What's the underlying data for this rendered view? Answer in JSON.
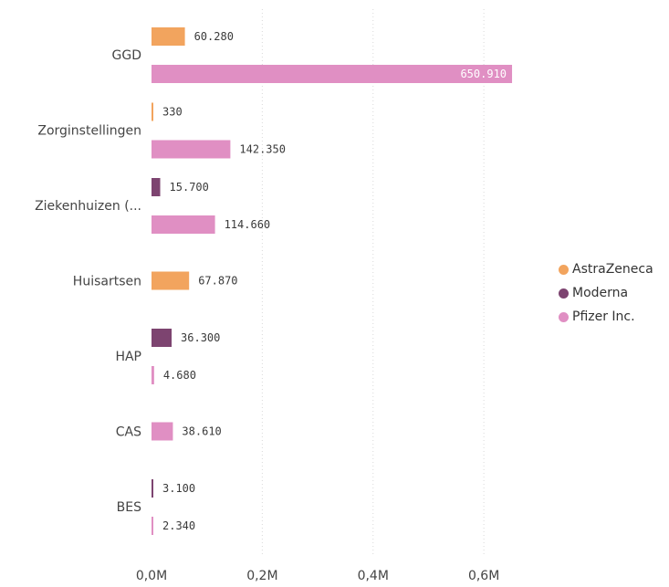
{
  "chart_data": {
    "type": "bar",
    "orientation": "horizontal",
    "categories": [
      "GGD",
      "Zorginstellingen",
      "Ziekenhuizen (...",
      "Huisartsen",
      "HAP",
      "CAS",
      "BES"
    ],
    "series": [
      {
        "name": "AstraZeneca",
        "color": "#F2A45E",
        "values": [
          60280,
          330,
          null,
          67870,
          null,
          null,
          null
        ],
        "labels": [
          "60.280",
          "330",
          "",
          "67.870",
          "",
          "",
          ""
        ]
      },
      {
        "name": "Moderna",
        "color": "#7D4470",
        "values": [
          null,
          null,
          15700,
          null,
          36300,
          null,
          3100
        ],
        "labels": [
          "",
          "",
          "15.700",
          "",
          "36.300",
          "",
          "3.100"
        ]
      },
      {
        "name": "Pfizer Inc.",
        "color": "#E08FC3",
        "values": [
          650910,
          142350,
          114660,
          null,
          4680,
          38610,
          2340
        ],
        "labels": [
          "650.910",
          "142.350",
          "114.660",
          "",
          "4.680",
          "38.610",
          "2.340"
        ]
      }
    ],
    "x_ticks": [
      0,
      200000,
      400000,
      600000
    ],
    "x_tick_labels": [
      "0,0M",
      "0,2M",
      "0,4M",
      "0,6M"
    ],
    "xlim": [
      0,
      720000
    ],
    "grid": "vertical dotted",
    "legend_position": "right"
  }
}
